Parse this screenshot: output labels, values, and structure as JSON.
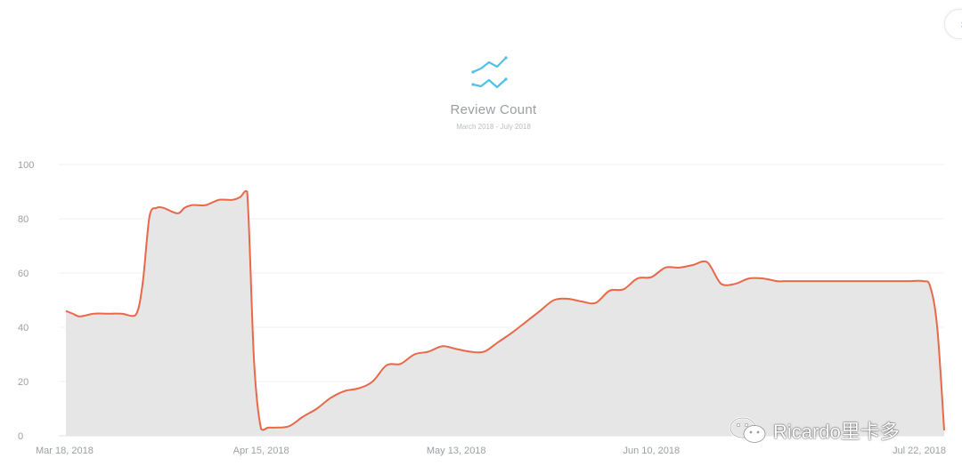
{
  "window": {
    "close_label": "×"
  },
  "header": {
    "icon": "line-chart-icon",
    "icon_color": "#4fc1e9",
    "title": "Review Count",
    "subtitle": "March 2018 - July 2018"
  },
  "chart_data": {
    "type": "area",
    "title": "Review Count",
    "subtitle": "March 2018 - July 2018",
    "xlabel": "",
    "ylabel": "",
    "x_ticks": [
      "Mar 18, 2018",
      "Apr 15, 2018",
      "May 13, 2018",
      "Jun 10, 2018",
      "Jul 22, 2018"
    ],
    "y_ticks": [
      0,
      20,
      40,
      60,
      80,
      100
    ],
    "ylim": [
      0,
      100
    ],
    "xlim": [
      "2018-03-18",
      "2018-07-22"
    ],
    "grid": true,
    "line_color": "#e8684a",
    "fill_color": "#e6e6e6",
    "series": [
      {
        "x": [
          "2018-03-18",
          "2018-03-19",
          "2018-03-20",
          "2018-03-22",
          "2018-03-24",
          "2018-03-26",
          "2018-03-28",
          "2018-03-29",
          "2018-03-30",
          "2018-03-31",
          "2018-04-01",
          "2018-04-03",
          "2018-04-04",
          "2018-04-05",
          "2018-04-06",
          "2018-04-07",
          "2018-04-08",
          "2018-04-09",
          "2018-04-10",
          "2018-04-11",
          "2018-04-12",
          "2018-04-13",
          "2018-04-14",
          "2018-04-15",
          "2018-04-16",
          "2018-04-17",
          "2018-04-19",
          "2018-04-21",
          "2018-04-23",
          "2018-04-25",
          "2018-04-27",
          "2018-04-29",
          "2018-05-01",
          "2018-05-03",
          "2018-05-05",
          "2018-05-07",
          "2018-05-09",
          "2018-05-11",
          "2018-05-13",
          "2018-05-15",
          "2018-05-17",
          "2018-05-19",
          "2018-05-21",
          "2018-05-23",
          "2018-05-25",
          "2018-05-27",
          "2018-05-29",
          "2018-05-31",
          "2018-06-02",
          "2018-06-04",
          "2018-06-06",
          "2018-06-08",
          "2018-06-10",
          "2018-06-12",
          "2018-06-14",
          "2018-06-16",
          "2018-06-18",
          "2018-06-20",
          "2018-06-22",
          "2018-06-24",
          "2018-06-26",
          "2018-06-28",
          "2018-06-29",
          "2018-06-30",
          "2018-07-01",
          "2018-07-03",
          "2018-07-05",
          "2018-07-07",
          "2018-07-09",
          "2018-07-11",
          "2018-07-13",
          "2018-07-15",
          "2018-07-17",
          "2018-07-19",
          "2018-07-20",
          "2018-07-21",
          "2018-07-22"
        ],
        "values": [
          46,
          45,
          44,
          45,
          45,
          45,
          44.5,
          56,
          81,
          84,
          84,
          82,
          84,
          85,
          85,
          85,
          86,
          87,
          87,
          87,
          88,
          90,
          27,
          2.5,
          3,
          3,
          3.5,
          7,
          10,
          14,
          16.5,
          17.5,
          20,
          26,
          26.5,
          30,
          31,
          33,
          32,
          31,
          31,
          34.5,
          38,
          42,
          46,
          50,
          50.5,
          49.5,
          49,
          53.5,
          54,
          58,
          58.5,
          62,
          62,
          63,
          64,
          56,
          56,
          58,
          58,
          57,
          57,
          57,
          57,
          57,
          57,
          57,
          57,
          57,
          57,
          57,
          57,
          57,
          55,
          40,
          2
        ]
      }
    ]
  }
}
